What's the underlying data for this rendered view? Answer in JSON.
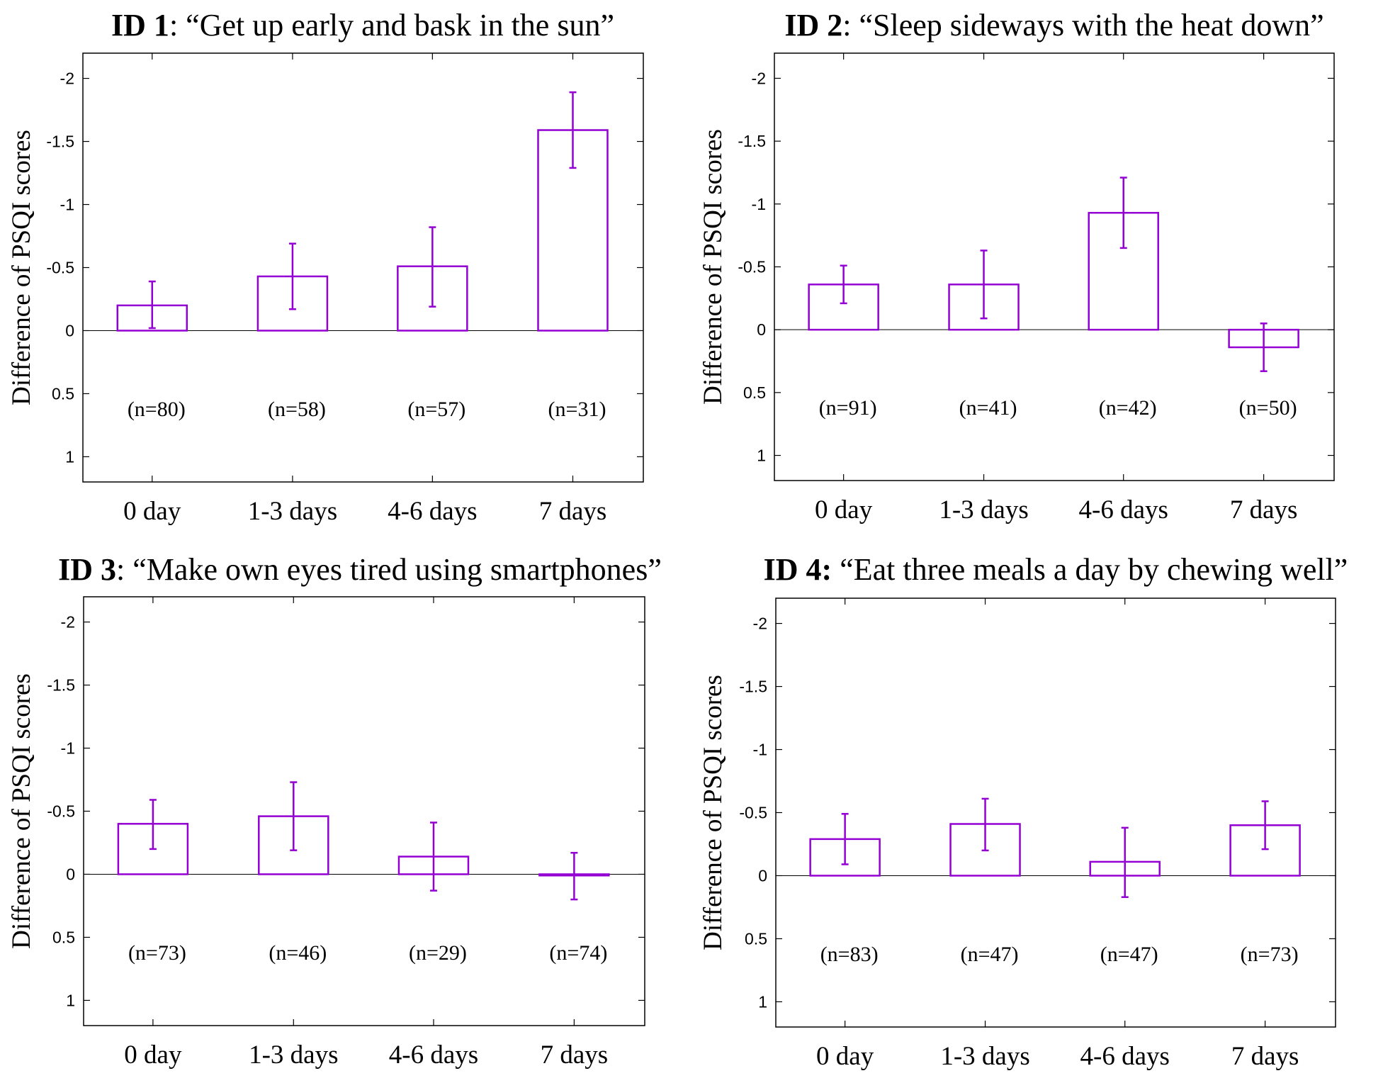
{
  "chart_data": [
    {
      "type": "bar",
      "title_id": "ID 1",
      "title_text": ": “Get up early and bask in the sun”",
      "ylabel": "Difference of PSQI scores",
      "xlabel": "",
      "ylim": [
        1.2,
        -2.2
      ],
      "y_reversed": true,
      "y_ticks": [
        -2,
        -1.5,
        -1,
        -0.5,
        0,
        0.5,
        1
      ],
      "y_tick_labels": [
        "-2",
        "-1.5",
        "-1",
        "-0.5",
        "0",
        "0.5",
        "1"
      ],
      "categories": [
        "0 day",
        "1-3 days",
        "4-6 days",
        "7 days"
      ],
      "values": [
        -0.2,
        -0.43,
        -0.51,
        -1.59
      ],
      "error_low": [
        -0.02,
        -0.17,
        -0.19,
        -1.29
      ],
      "error_high": [
        -0.39,
        -0.69,
        -0.82,
        -1.89
      ],
      "n_labels": [
        "(n=80)",
        "(n=58)",
        "(n=57)",
        "(n=31)"
      ],
      "bar_color": "#9400D3",
      "grid": false
    },
    {
      "type": "bar",
      "title_id": "ID 2",
      "title_text": ": “Sleep sideways with the heat down”",
      "ylabel": "Difference of PSQI scores",
      "xlabel": "",
      "ylim": [
        1.2,
        -2.2
      ],
      "y_reversed": true,
      "y_ticks": [
        -2,
        -1.5,
        -1,
        -0.5,
        0,
        0.5,
        1
      ],
      "y_tick_labels": [
        "-2",
        "-1.5",
        "-1",
        "-0.5",
        "0",
        "0.5",
        "1"
      ],
      "categories": [
        "0 day",
        "1-3 days",
        "4-6 days",
        "7 days"
      ],
      "values": [
        -0.36,
        -0.36,
        -0.93,
        0.14
      ],
      "error_low": [
        -0.21,
        -0.09,
        -0.65,
        0.33
      ],
      "error_high": [
        -0.51,
        -0.63,
        -1.21,
        -0.05
      ],
      "n_labels": [
        "(n=91)",
        "(n=41)",
        "(n=42)",
        "(n=50)"
      ],
      "bar_color": "#9400D3",
      "grid": false
    },
    {
      "type": "bar",
      "title_id": "ID 3",
      "title_text": ": “Make own eyes tired using smartphones”",
      "ylabel": "Difference of PSQI scores",
      "xlabel": "",
      "ylim": [
        1.2,
        -2.2
      ],
      "y_reversed": true,
      "y_ticks": [
        -2,
        -1.5,
        -1,
        -0.5,
        0,
        0.5,
        1
      ],
      "y_tick_labels": [
        "-2",
        "-1.5",
        "-1",
        "-0.5",
        "0",
        "0.5",
        "1"
      ],
      "categories": [
        "0 day",
        "1-3 days",
        "4-6 days",
        "7 days"
      ],
      "values": [
        -0.4,
        -0.46,
        -0.14,
        0.01
      ],
      "error_low": [
        -0.2,
        -0.19,
        0.13,
        0.2
      ],
      "error_high": [
        -0.59,
        -0.73,
        -0.41,
        -0.17
      ],
      "n_labels": [
        "(n=73)",
        "(n=46)",
        "(n=29)",
        "(n=74)"
      ],
      "bar_color": "#9400D3",
      "grid": false
    },
    {
      "type": "bar",
      "title_id": "ID 4:",
      "title_text": " “Eat three meals a day by chewing well”",
      "ylabel": "Difference of PSQI scores",
      "xlabel": "",
      "ylim": [
        1.2,
        -2.2
      ],
      "y_reversed": true,
      "y_ticks": [
        -2,
        -1.5,
        -1,
        -0.5,
        0,
        0.5,
        1
      ],
      "y_tick_labels": [
        "-2",
        "-1.5",
        "-1",
        "-0.5",
        "0",
        "0.5",
        "1"
      ],
      "categories": [
        "0 day",
        "1-3 days",
        "4-6 days",
        "7 days"
      ],
      "values": [
        -0.29,
        -0.41,
        -0.11,
        -0.4
      ],
      "error_low": [
        -0.09,
        -0.2,
        0.17,
        -0.21
      ],
      "error_high": [
        -0.49,
        -0.61,
        -0.38,
        -0.59
      ],
      "n_labels": [
        "(n=83)",
        "(n=47)",
        "(n=47)",
        "(n=73)"
      ],
      "bar_color": "#9400D3",
      "grid": false
    }
  ]
}
